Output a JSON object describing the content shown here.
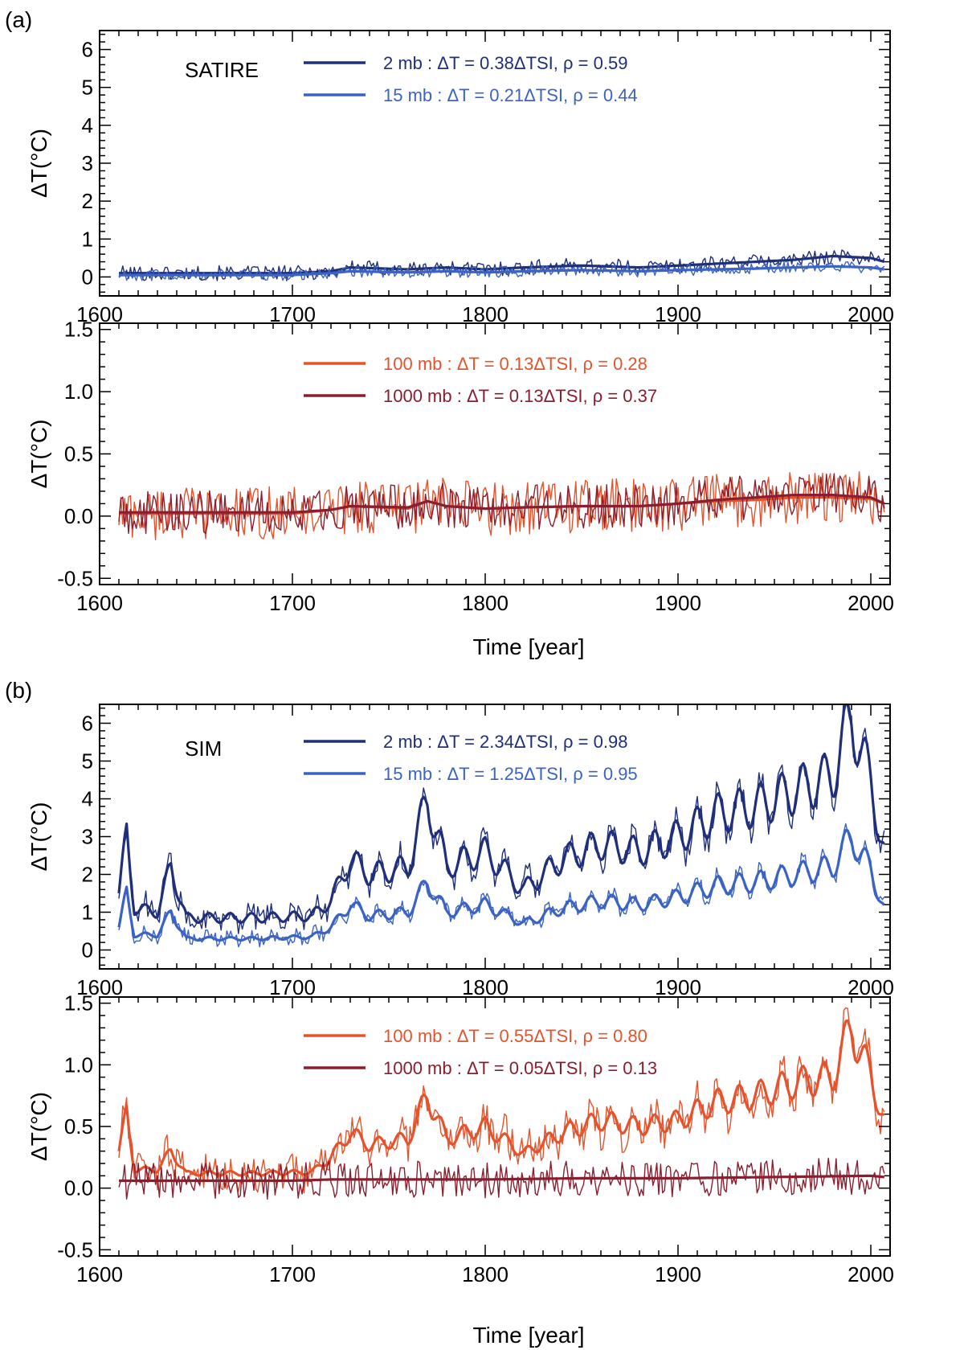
{
  "panels": [
    {
      "label": "(a)",
      "xlabel": "Time [year]"
    },
    {
      "label": "(b)",
      "xlabel": "Time [year]"
    }
  ],
  "chart_data": [
    {
      "type": "line",
      "panel": "(a)",
      "model": "SATIRE",
      "title": "SATIRE",
      "xlabel": "",
      "ylabel": "ΔT(°C)",
      "xlim": [
        1600,
        2010
      ],
      "ylim": [
        -0.5,
        6.5
      ],
      "xticks": [
        1600,
        1700,
        1800,
        1900,
        2000
      ],
      "yticks": [
        0,
        1,
        2,
        3,
        4,
        5,
        6
      ],
      "ytick_labels": [
        "0",
        "1",
        "2",
        "3",
        "4",
        "5",
        "6"
      ],
      "series": [
        {
          "name": "2 mb",
          "legend": "2 mb : ΔT = 0.38ΔTSI, ρ = 0.59",
          "color": "#1f2f7a",
          "smooth": {
            "x": [
              1610,
              1640,
              1680,
              1700,
              1720,
              1730,
              1760,
              1780,
              1800,
              1820,
              1850,
              1880,
              1900,
              1920,
              1940,
              1960,
              1980,
              2000,
              2007
            ],
            "y": [
              0.1,
              0.1,
              0.1,
              0.1,
              0.15,
              0.25,
              0.2,
              0.25,
              0.2,
              0.25,
              0.3,
              0.25,
              0.3,
              0.35,
              0.4,
              0.45,
              0.55,
              0.5,
              0.4
            ]
          },
          "noise": 0.2
        },
        {
          "name": "15 mb",
          "legend": "15 mb : ΔT = 0.21ΔTSI, ρ = 0.44",
          "color": "#3b63c4",
          "smooth": {
            "x": [
              1610,
              1640,
              1680,
              1700,
              1720,
              1730,
              1760,
              1780,
              1800,
              1820,
              1850,
              1880,
              1900,
              1920,
              1940,
              1960,
              1980,
              2000,
              2007
            ],
            "y": [
              0.05,
              0.05,
              0.05,
              0.05,
              0.1,
              0.15,
              0.12,
              0.15,
              0.12,
              0.15,
              0.18,
              0.15,
              0.18,
              0.2,
              0.22,
              0.25,
              0.28,
              0.25,
              0.2
            ]
          },
          "noise": 0.15
        }
      ]
    },
    {
      "type": "line",
      "panel": "(a)",
      "model": "SATIRE",
      "title": "",
      "xlabel": "Time [year]",
      "ylabel": "ΔT(°C)",
      "xlim": [
        1600,
        2010
      ],
      "ylim": [
        -0.55,
        1.55
      ],
      "xticks": [
        1600,
        1700,
        1800,
        1900,
        2000
      ],
      "yticks": [
        -0.5,
        0.0,
        0.5,
        1.0,
        1.5
      ],
      "ytick_labels": [
        "-0.5",
        "0.0",
        "0.5",
        "1.0",
        "1.5"
      ],
      "series": [
        {
          "name": "100 mb",
          "legend": "100 mb : ΔT = 0.13ΔTSI, ρ = 0.28",
          "color": "#e5532d",
          "smooth": {
            "x": [
              1610,
              1640,
              1680,
              1700,
              1720,
              1730,
              1760,
              1770,
              1780,
              1800,
              1820,
              1850,
              1880,
              1900,
              1920,
              1940,
              1960,
              1980,
              2000,
              2007
            ],
            "y": [
              0.02,
              0.02,
              0.02,
              0.02,
              0.05,
              0.08,
              0.06,
              0.12,
              0.08,
              0.06,
              0.07,
              0.08,
              0.08,
              0.1,
              0.12,
              0.13,
              0.15,
              0.15,
              0.14,
              0.1
            ]
          },
          "noise": 0.22
        },
        {
          "name": "1000 mb",
          "legend": "1000 mb : ΔT = 0.13ΔTSI, ρ = 0.37",
          "color": "#8b1e2e",
          "smooth": {
            "x": [
              1610,
              1640,
              1680,
              1700,
              1720,
              1730,
              1760,
              1770,
              1780,
              1800,
              1820,
              1850,
              1880,
              1900,
              1920,
              1940,
              1960,
              1980,
              2000,
              2007
            ],
            "y": [
              0.03,
              0.03,
              0.03,
              0.03,
              0.05,
              0.08,
              0.07,
              0.12,
              0.08,
              0.06,
              0.07,
              0.08,
              0.08,
              0.1,
              0.13,
              0.15,
              0.17,
              0.17,
              0.15,
              0.1
            ]
          },
          "noise": 0.18
        }
      ]
    },
    {
      "type": "line",
      "panel": "(b)",
      "model": "SIM",
      "title": "SIM",
      "xlabel": "",
      "ylabel": "ΔT(°C)",
      "xlim": [
        1600,
        2010
      ],
      "ylim": [
        -0.5,
        6.5
      ],
      "xticks": [
        1600,
        1700,
        1800,
        1900,
        2000
      ],
      "yticks": [
        0,
        1,
        2,
        3,
        4,
        5,
        6
      ],
      "ytick_labels": [
        "0",
        "1",
        "2",
        "3",
        "4",
        "5",
        "6"
      ],
      "series": [
        {
          "name": "2 mb",
          "legend": "2 mb : ΔT = 2.34ΔTSI, ρ = 0.98",
          "color": "#1f2f7a",
          "smooth": {
            "x": [
              1610,
              1614,
              1618,
              1630,
              1637,
              1645,
              1680,
              1710,
              1720,
              1730,
              1740,
              1760,
              1770,
              1780,
              1800,
              1820,
              1840,
              1860,
              1880,
              1900,
              1920,
              1940,
              1960,
              1980,
              1990,
              2000,
              2007
            ],
            "y": [
              1.5,
              3.0,
              1.1,
              1.0,
              2.2,
              0.85,
              0.85,
              0.9,
              1.3,
              2.4,
              2.0,
              2.2,
              4.0,
              2.2,
              2.6,
              1.6,
              2.4,
              2.8,
              2.6,
              3.0,
              3.6,
              3.8,
              4.2,
              4.6,
              6.2,
              4.4,
              2.6
            ]
          },
          "cycle": true,
          "noise": 0.35
        },
        {
          "name": "15 mb",
          "legend": "15 mb : ΔT = 1.25ΔTSI, ρ = 0.95",
          "color": "#3b63c4",
          "smooth": {
            "x": [
              1610,
              1614,
              1618,
              1630,
              1637,
              1645,
              1680,
              1710,
              1720,
              1730,
              1740,
              1760,
              1770,
              1780,
              1800,
              1820,
              1840,
              1860,
              1880,
              1900,
              1920,
              1940,
              1960,
              1980,
              1990,
              2000,
              2007
            ],
            "y": [
              0.6,
              1.5,
              0.4,
              0.4,
              1.0,
              0.3,
              0.3,
              0.35,
              0.6,
              1.2,
              0.9,
              1.0,
              1.8,
              1.0,
              1.2,
              0.7,
              1.1,
              1.3,
              1.2,
              1.4,
              1.7,
              1.8,
              2.0,
              2.2,
              3.0,
              2.1,
              1.1
            ]
          },
          "cycle": true,
          "noise": 0.2
        }
      ]
    },
    {
      "type": "line",
      "panel": "(b)",
      "model": "SIM",
      "title": "",
      "xlabel": "Time [year]",
      "ylabel": "ΔT(°C)",
      "xlim": [
        1600,
        2010
      ],
      "ylim": [
        -0.55,
        1.55
      ],
      "xticks": [
        1600,
        1700,
        1800,
        1900,
        2000
      ],
      "yticks": [
        -0.5,
        0.0,
        0.5,
        1.0,
        1.5
      ],
      "ytick_labels": [
        "-0.5",
        "0.0",
        "0.5",
        "1.0",
        "1.5"
      ],
      "series": [
        {
          "name": "100 mb",
          "legend": "100 mb : ΔT = 0.55ΔTSI, ρ = 0.80",
          "color": "#e5532d",
          "smooth": {
            "x": [
              1610,
              1614,
              1618,
              1630,
              1637,
              1645,
              1680,
              1710,
              1720,
              1730,
              1740,
              1760,
              1770,
              1780,
              1800,
              1820,
              1840,
              1860,
              1880,
              1900,
              1920,
              1940,
              1960,
              1980,
              1990,
              2000,
              2007
            ],
            "y": [
              0.3,
              0.6,
              0.15,
              0.15,
              0.3,
              0.12,
              0.12,
              0.13,
              0.25,
              0.45,
              0.35,
              0.4,
              0.75,
              0.4,
              0.5,
              0.28,
              0.45,
              0.55,
              0.5,
              0.55,
              0.7,
              0.75,
              0.85,
              0.9,
              1.3,
              0.9,
              0.55
            ]
          },
          "cycle": true,
          "noise": 0.15
        },
        {
          "name": "1000 mb",
          "legend": "1000 mb : ΔT = 0.05ΔTSI, ρ = 0.13",
          "color": "#8b1e2e",
          "smooth": {
            "x": [
              1610,
              1700,
              1720,
              1760,
              1800,
              1850,
              1900,
              1950,
              2000,
              2007
            ],
            "y": [
              0.06,
              0.06,
              0.07,
              0.07,
              0.07,
              0.08,
              0.08,
              0.09,
              0.1,
              0.09
            ]
          },
          "noise": 0.15
        }
      ]
    }
  ]
}
